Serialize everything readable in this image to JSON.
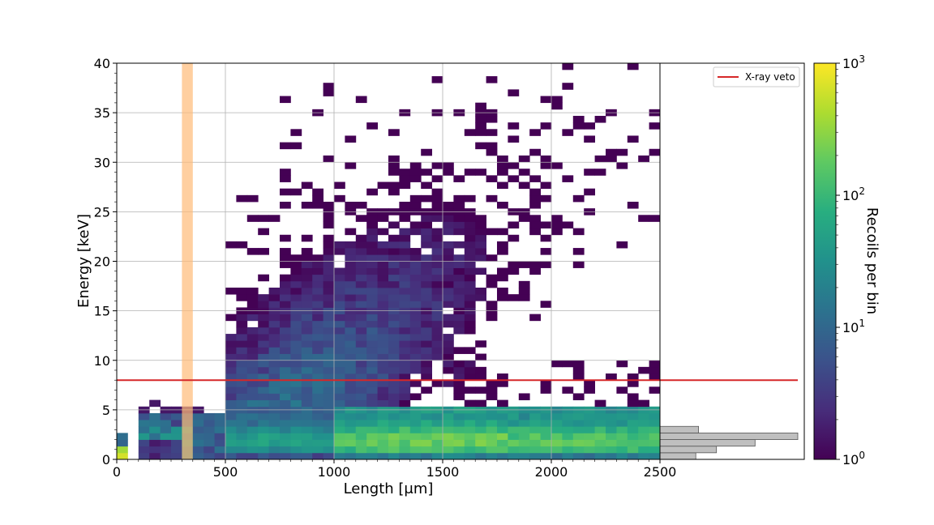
{
  "chart_data": {
    "type": "heatmap",
    "xlabel": "Length [μm]",
    "ylabel": "Energy [keV]",
    "colorbar_label": "Recoils per bin",
    "xlim": [
      0,
      2500
    ],
    "ylim": [
      0,
      40
    ],
    "x_ticks": [
      0,
      500,
      1000,
      1500,
      2000,
      2500
    ],
    "x_tick_labels": [
      "0",
      "500",
      "1000",
      "1500",
      "2000",
      "2500"
    ],
    "y_ticks": [
      0,
      5,
      10,
      15,
      20,
      25,
      30,
      35,
      40
    ],
    "y_tick_labels": [
      "0",
      "5",
      "10",
      "15",
      "20",
      "25",
      "30",
      "35",
      "40"
    ],
    "color_scale": "log",
    "colorbar_range": [
      1,
      1000
    ],
    "colorbar_ticks": [
      {
        "base": "10",
        "exp": "0",
        "value": 1
      },
      {
        "base": "10",
        "exp": "1",
        "value": 10
      },
      {
        "base": "10",
        "exp": "2",
        "value": 100
      },
      {
        "base": "10",
        "exp": "3",
        "value": 1000
      }
    ],
    "colormap": "viridis",
    "grid": true,
    "bins": {
      "x_width": 50,
      "y_height": 0.667
    },
    "horizontal_line": {
      "name": "X-ray veto",
      "y": 8,
      "color": "#d62728"
    },
    "shaded_band": {
      "x": [
        300,
        350
      ],
      "color": "#ffbb78"
    },
    "legend": {
      "position": "top-right",
      "entries": [
        "X-ray veto"
      ]
    },
    "energy_projection_histogram": {
      "bin_edges": [
        0,
        0.667,
        1.333,
        2,
        2.667,
        3.333
      ],
      "relative_counts": [
        0.26,
        0.41,
        0.69,
        1.0,
        0.28,
        0.07
      ],
      "color": "#bfbfbf"
    },
    "density_regions": [
      {
        "x": [
          1000,
          2500
        ],
        "y": [
          1.3,
          2.7
        ],
        "level": 250
      },
      {
        "x": [
          500,
          1000
        ],
        "y": [
          1.3,
          2.7
        ],
        "level": 80
      },
      {
        "x": [
          1000,
          2500
        ],
        "y": [
          0,
          5.3
        ],
        "level": 35
      },
      {
        "x": [
          1000,
          1500
        ],
        "y": [
          5.3,
          12
        ],
        "level": 10
      },
      {
        "x": [
          1000,
          1500
        ],
        "y": [
          12,
          30
        ],
        "level": 4
      },
      {
        "x": [
          500,
          1000
        ],
        "y": [
          0,
          5.3
        ],
        "level": 15
      },
      {
        "x": [
          300,
          350
        ],
        "y": [
          2,
          3.3
        ],
        "level": 40
      },
      {
        "x": [
          0,
          50
        ],
        "y": [
          0.5,
          1.5
        ],
        "level": 900
      }
    ]
  }
}
